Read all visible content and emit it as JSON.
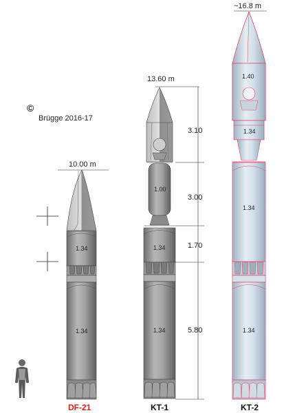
{
  "credit": {
    "symbol": "©",
    "text": "Brügge 2016-17"
  },
  "rockets": [
    {
      "name": "DF-21",
      "name_color": "#e0201c",
      "height_label": "10.00 m",
      "stage_diameters": [
        "1.34",
        "1.34"
      ]
    },
    {
      "name": "KT-1",
      "name_color": "#111111",
      "height_label": "13.60 m",
      "stage_diameters": [
        "1.00",
        "1.34",
        "1.34"
      ]
    },
    {
      "name": "KT-2",
      "name_color": "#111111",
      "height_label": "~16.8 m",
      "stage_diameters": [
        "1.40",
        "1.34",
        "1.34",
        "1.34"
      ]
    }
  ],
  "section_lengths": [
    "3.10",
    "3.00",
    "1.70",
    "5.80"
  ],
  "colors": {
    "rocket_fill": "#a9a9a9",
    "rocket_dark": "#7d7d7d",
    "kt2_fill": "#dde6ee",
    "kt2_outline": "#e0406a",
    "dimension_line": "#222222"
  },
  "icons": [
    "copyright-icon",
    "crosshair-icon",
    "human-figure-icon"
  ]
}
